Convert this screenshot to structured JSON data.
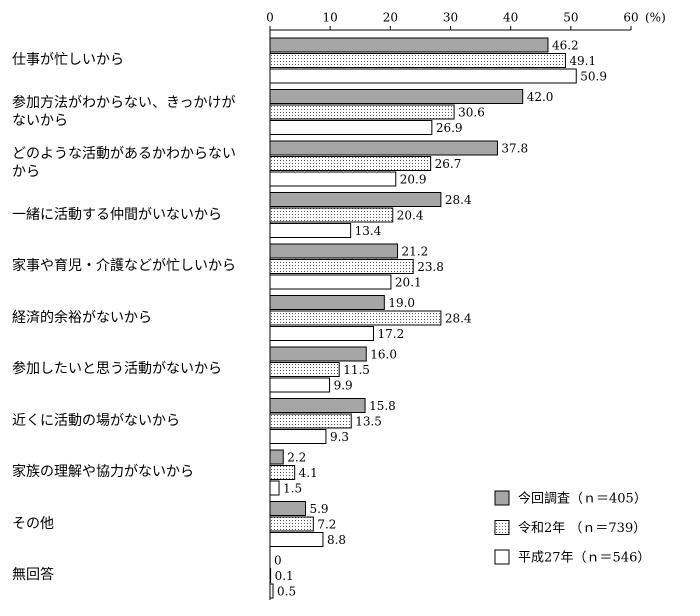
{
  "chart_data": {
    "type": "hbar",
    "unit_label": "(%)",
    "categories": [
      "仕事が忙しいから",
      "参加方法がわからない、きっかけがないから",
      "どのような活動があるかわからないから",
      "一緒に活動する仲間がいないから",
      "家事や育児・介護などが忙しいから",
      "経済的余裕がないから",
      "参加したいと思う活動がないから",
      "近くに活動の場がないから",
      "家族の理解や協力がないから",
      "その他",
      "無回答"
    ],
    "series": [
      {
        "name": "今回調査（ｎ＝405）",
        "color": "#a6a6a6",
        "pattern": "solid",
        "values": [
          46.2,
          42.0,
          37.8,
          28.4,
          21.2,
          19.0,
          16.0,
          15.8,
          2.2,
          5.9,
          0
        ],
        "value_labels": [
          "46.2",
          "42.0",
          "37.8",
          "28.4",
          "21.2",
          "19.0",
          "16.0",
          "15.8",
          "2.2",
          "5.9",
          "0"
        ]
      },
      {
        "name": "令和2年 （ｎ＝739）",
        "color": "#ffffff",
        "pattern": "dots",
        "values": [
          49.1,
          30.6,
          26.7,
          20.4,
          23.8,
          28.4,
          11.5,
          13.5,
          4.1,
          7.2,
          0.1
        ],
        "value_labels": [
          "49.1",
          "30.6",
          "26.7",
          "20.4",
          "23.8",
          "28.4",
          "11.5",
          "13.5",
          "4.1",
          "7.2",
          "0.1"
        ]
      },
      {
        "name": "平成27年（ｎ＝546）",
        "color": "#ffffff",
        "pattern": "solid",
        "values": [
          50.9,
          26.9,
          20.9,
          13.4,
          20.1,
          17.2,
          9.9,
          9.3,
          1.5,
          8.8,
          0.5
        ],
        "value_labels": [
          "50.9",
          "26.9",
          "20.9",
          "13.4",
          "20.1",
          "17.2",
          "9.9",
          "9.3",
          "1.5",
          "8.8",
          "0.5"
        ]
      }
    ],
    "xlim": [
      0,
      60
    ],
    "xticks": [
      0,
      10,
      20,
      30,
      40,
      50,
      60
    ],
    "grid": false,
    "legend": "lower-right"
  }
}
